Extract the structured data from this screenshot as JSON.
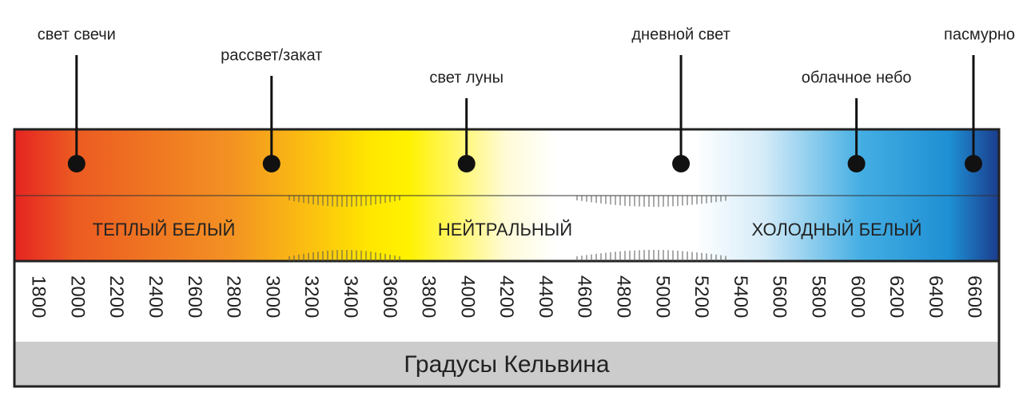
{
  "markers": [
    {
      "label": "свет свечи",
      "value": 2000
    },
    {
      "label": "рассвет/закат",
      "value": 3000
    },
    {
      "label": "свет луны",
      "value": 4000
    },
    {
      "label": "дневной свет",
      "value": 5100
    },
    {
      "label": "облачное небо",
      "value": 6000
    },
    {
      "label": "пасмурно",
      "value": 6600
    }
  ],
  "zones": [
    "ТЕПЛЫЙ БЕЛЫЙ",
    "НЕЙТРАЛЬНЫЙ",
    "ХОЛОДНЫЙ БЕЛЫЙ"
  ],
  "ticks": [
    1800,
    2000,
    2200,
    2400,
    2600,
    2800,
    3000,
    3200,
    3400,
    3600,
    3800,
    4000,
    4200,
    4400,
    4600,
    4800,
    5000,
    5200,
    5400,
    5600,
    5800,
    6000,
    6200,
    6400,
    6600
  ],
  "footer": "Градусы Кельвина"
}
